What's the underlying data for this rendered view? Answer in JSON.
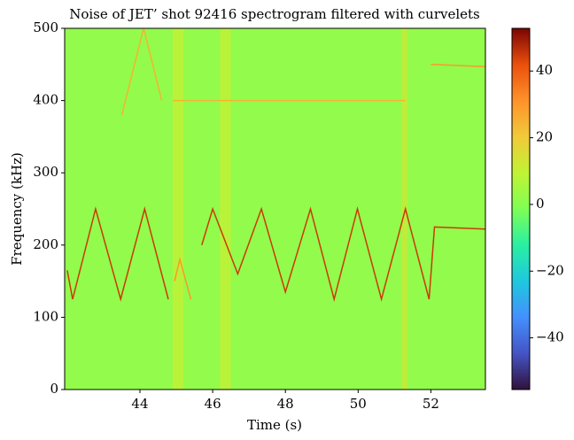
{
  "chart_data": {
    "type": "spectrogram",
    "title": "Noise of JET’ shot 92416 spectrogram filtered with curvelets",
    "xlabel": "Time (s)",
    "ylabel": "Frequency (kHz)",
    "xlim": [
      41.93,
      53.5
    ],
    "xticks": [
      44,
      46,
      48,
      50,
      52
    ],
    "ylim": [
      0,
      500
    ],
    "yticks": [
      0,
      100,
      200,
      300,
      400,
      500
    ],
    "clim": [
      -55.5,
      52.8
    ],
    "cticks": [
      {
        "value": -40,
        "label": "−40"
      },
      {
        "value": -20,
        "label": "−20"
      },
      0,
      20,
      40
    ],
    "colormap": "turbo",
    "background_level": 2,
    "bands": [
      {
        "x": [
          44.9,
          45.2
        ],
        "level": 10
      },
      {
        "x": [
          46.2,
          46.5
        ],
        "level": 10
      },
      {
        "x": [
          51.2,
          51.35
        ],
        "level": 12
      }
    ],
    "traces": [
      {
        "x": [
          42.0,
          42.15,
          42.78,
          43.47,
          44.13,
          44.78
        ],
        "y": [
          165,
          125,
          250,
          125,
          250,
          125
        ],
        "level": 45
      },
      {
        "x": [
          45.7,
          46.0,
          46.69,
          47.34,
          48.0,
          48.69,
          49.34,
          49.98,
          50.64,
          51.3,
          51.95,
          52.1,
          53.5
        ],
        "y": [
          200,
          250,
          160,
          250,
          135,
          250,
          125,
          250,
          125,
          250,
          125,
          225,
          222
        ],
        "level": 45
      },
      {
        "x": [
          44.95,
          45.1,
          45.4
        ],
        "y": [
          150,
          180,
          125
        ],
        "level": 30
      },
      {
        "x": [
          43.5,
          44.1,
          44.6
        ],
        "y": [
          380,
          500,
          400
        ],
        "level": 25
      },
      {
        "x": [
          44.9,
          51.3
        ],
        "y": [
          400,
          400
        ],
        "level": 25
      },
      {
        "x": [
          52.0,
          53.5
        ],
        "y": [
          450,
          447
        ],
        "level": 30
      }
    ]
  }
}
